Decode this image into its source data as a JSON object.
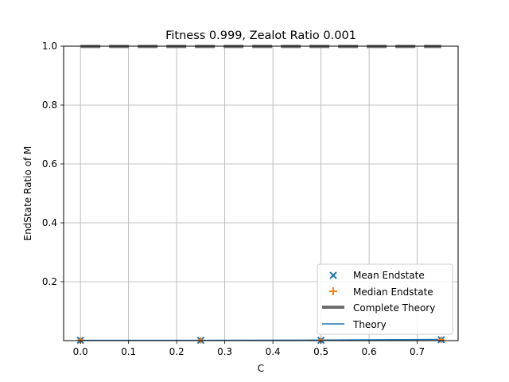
{
  "chart_data": {
    "type": "scatter",
    "title": "Fitness 0.999, Zealot Ratio 0.001",
    "xlabel": "C",
    "ylabel": "EndState Ratio of M",
    "xlim": [
      -0.035,
      0.785
    ],
    "ylim": [
      0.0,
      1.0
    ],
    "xticks": [
      "0.0",
      "0.1",
      "0.2",
      "0.3",
      "0.4",
      "0.5",
      "0.6",
      "0.7"
    ],
    "yticks": [
      "0.2",
      "0.4",
      "0.6",
      "0.8",
      "1.0"
    ],
    "grid": true,
    "legend_position": "lower-right",
    "series": [
      {
        "name": "Mean Endstate",
        "marker": "x",
        "color": "#1f77b4",
        "x": [
          0.0,
          0.25,
          0.5,
          0.75
        ],
        "y": [
          0.001,
          0.001,
          0.001,
          0.003
        ]
      },
      {
        "name": "Median Endstate",
        "marker": "+",
        "color": "#ff7f0e",
        "x": [
          0.0,
          0.25,
          0.5,
          0.75
        ],
        "y": [
          0.001,
          0.001,
          0.001,
          0.003
        ]
      },
      {
        "name": "Complete Theory",
        "style": "dashed",
        "color": "#6d6d6d",
        "x": [
          0.0,
          0.75
        ],
        "y": [
          0.999,
          0.999
        ]
      },
      {
        "name": "Theory",
        "style": "solid",
        "color": "#1f77b4",
        "x": [
          0.0,
          0.25,
          0.5,
          0.75
        ],
        "y": [
          0.001,
          0.001,
          0.002,
          0.004
        ]
      }
    ]
  }
}
